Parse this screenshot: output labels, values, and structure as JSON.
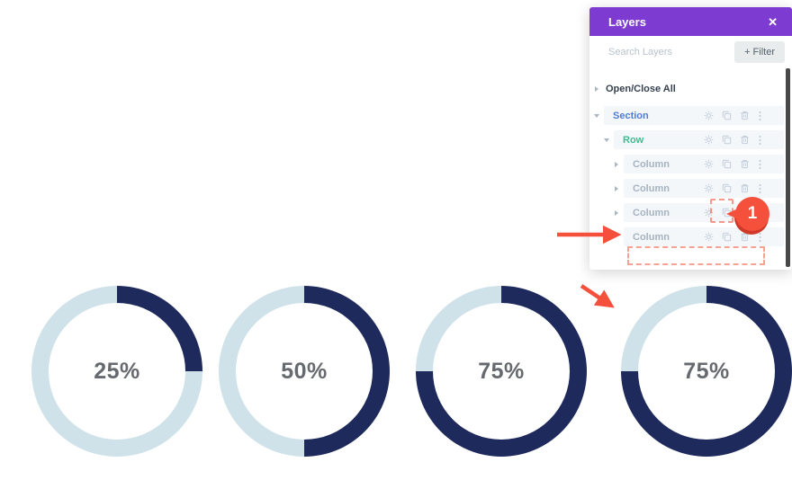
{
  "layers_panel": {
    "title": "Layers",
    "close_icon": "✕",
    "search_placeholder": "Search Layers",
    "filter_button": "+ Filter",
    "open_close_all": "Open/Close All",
    "tree": [
      {
        "label": "Section",
        "level": "section",
        "indent": 0,
        "chevron": "down"
      },
      {
        "label": "Row",
        "level": "row",
        "indent": 1,
        "chevron": "down"
      },
      {
        "label": "Column",
        "level": "column",
        "indent": 2,
        "chevron": "right"
      },
      {
        "label": "Column",
        "level": "column",
        "indent": 2,
        "chevron": "right"
      },
      {
        "label": "Column",
        "level": "column",
        "indent": 2,
        "chevron": "right"
      },
      {
        "label": "Column",
        "level": "column",
        "indent": 2,
        "chevron": "none"
      }
    ],
    "row_icons": [
      "gear",
      "duplicate",
      "trash",
      "ellipsis"
    ]
  },
  "annotations": {
    "badge_label": "1"
  },
  "chart_data": {
    "type": "pie",
    "variant": "progress-donut",
    "values": [
      25,
      50,
      75,
      75
    ],
    "labels": [
      "25%",
      "50%",
      "75%",
      "75%"
    ],
    "start_angle_deg": 0,
    "direction": "clockwise",
    "fill_color": "#1f2a5c",
    "track_color": "#cfe2e9",
    "label_color": "#66696e"
  },
  "colors": {
    "panel_header_purple": "#7d3bd1",
    "section_label": "#4f7cd8",
    "row_label": "#3ac08f",
    "column_label": "#a7b3c0",
    "icon_gray": "#c4cedb",
    "annotation_red": "#f4503c",
    "badge_shadow_red": "#cf3a28"
  }
}
